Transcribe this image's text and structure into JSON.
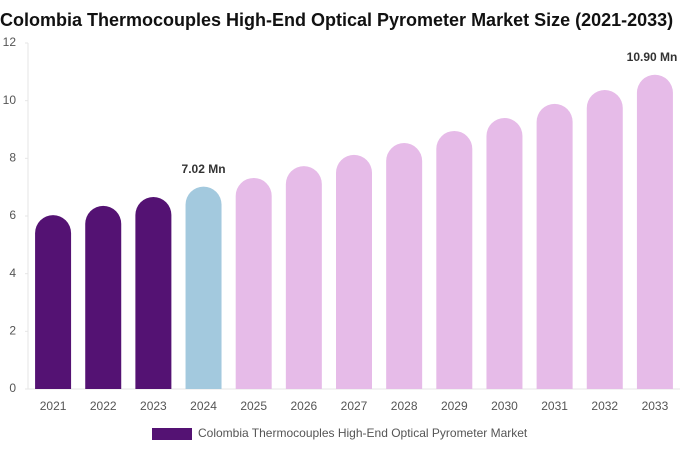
{
  "chart_data": {
    "type": "bar",
    "title": "Colombia Thermocouples High-End Optical Pyrometer Market Size (2021-2033)",
    "categories": [
      "2021",
      "2022",
      "2023",
      "2024",
      "2025",
      "2026",
      "2027",
      "2028",
      "2029",
      "2030",
      "2031",
      "2032",
      "2033"
    ],
    "series": [
      {
        "name": "Colombia Thermocouples High-End Optical Pyrometer Market",
        "color": "#541273",
        "colors": [
          "#541273",
          "#541273",
          "#541273",
          "#a3c9de",
          "#e6bbe8",
          "#e6bbe8",
          "#e6bbe8",
          "#e6bbe8",
          "#e6bbe8",
          "#e6bbe8",
          "#e6bbe8",
          "#e6bbe8",
          "#e6bbe8"
        ],
        "values": [
          6.03,
          6.35,
          6.66,
          7.02,
          7.32,
          7.73,
          8.12,
          8.53,
          8.95,
          9.4,
          9.89,
          10.37,
          10.9
        ],
        "value_labels": [
          null,
          null,
          null,
          "7.02 Mn",
          null,
          null,
          null,
          null,
          null,
          null,
          null,
          null,
          "10.90 Mn"
        ]
      }
    ],
    "ylim": [
      0,
      12
    ],
    "yticks": [
      0,
      2,
      4,
      6,
      8,
      10,
      12
    ]
  }
}
